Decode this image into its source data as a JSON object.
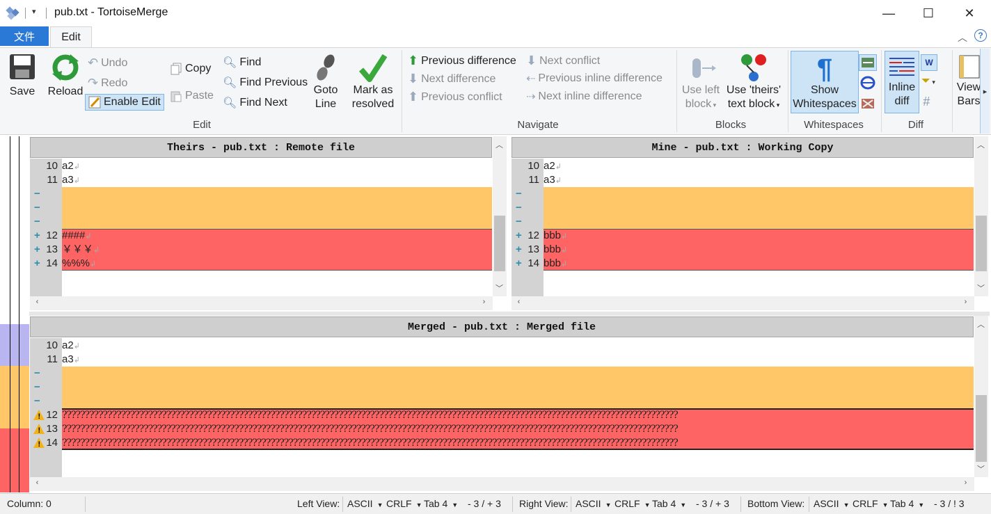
{
  "window": {
    "title": "pub.txt - TortoiseMerge",
    "qat_arrow": "▾",
    "minimize": "—",
    "maximize": "☐",
    "close": "✕"
  },
  "tabs": {
    "file": "文件",
    "edit": "Edit"
  },
  "ribbon": {
    "save": "Save",
    "reload": "Reload",
    "undo": "Undo",
    "redo": "Redo",
    "enable_edit": "Enable Edit",
    "copy": "Copy",
    "paste": "Paste",
    "find": "Find",
    "find_previous": "Find Previous",
    "find_next": "Find Next",
    "goto_line_1": "Goto",
    "goto_line_2": "Line",
    "mark_resolved_1": "Mark as",
    "mark_resolved_2": "resolved",
    "edit_group": "Edit",
    "prev_difference": "Previous difference",
    "next_difference": "Next difference",
    "prev_conflict": "Previous conflict",
    "next_conflict": "Next conflict",
    "prev_inline_difference": "Previous inline difference",
    "next_inline_difference": "Next inline difference",
    "navigate_group": "Navigate",
    "use_left_block_1": "Use left",
    "use_left_block_2": "block",
    "use_theirs_1": "Use 'theirs'",
    "use_theirs_2": "text block",
    "blocks_group": "Blocks",
    "show_ws_1": "Show",
    "show_ws_2": "Whitespaces",
    "whitespaces_group": "Whitespaces",
    "inline_diff_1": "Inline",
    "inline_diff_2": "diff",
    "diff_group": "Diff",
    "view_bars_1": "View",
    "view_bars_2": "Bars"
  },
  "theirs": {
    "header": "Theirs - pub.txt : Remote file",
    "lines": [
      {
        "num": "10",
        "text": "a2"
      },
      {
        "num": "11",
        "text": "a3"
      },
      {
        "num": "12",
        "text": "####"
      },
      {
        "num": "13",
        "text": "￥￥￥"
      },
      {
        "num": "14",
        "text": "%%%"
      }
    ],
    "minus": "−",
    "plus": "+"
  },
  "mine": {
    "header": "Mine - pub.txt : Working Copy",
    "lines": [
      {
        "num": "10",
        "text": "a2"
      },
      {
        "num": "11",
        "text": "a3"
      },
      {
        "num": "12",
        "text": "bbb"
      },
      {
        "num": "13",
        "text": "bbb"
      },
      {
        "num": "14",
        "text": "bbb"
      }
    ]
  },
  "merged": {
    "header": "Merged - pub.txt : Merged file",
    "lines": [
      {
        "num": "10",
        "text": "a2"
      },
      {
        "num": "11",
        "text": "a3"
      },
      {
        "num": "12",
        "text": "????????????????????????????????????????????????????????????????????????????????????????????????????????????????????????????????????????"
      },
      {
        "num": "13",
        "text": "????????????????????????????????????????????????????????????????????????????????????????????????????????????????????????????????????????"
      },
      {
        "num": "14",
        "text": "????????????????????????????????????????????????????????????????????????????????????????????????????????????????????????????????????????"
      }
    ]
  },
  "status": {
    "column": "Column: 0",
    "left_label": "Left View:",
    "left_enc": "ASCII",
    "left_eol": "CRLF",
    "left_tab": "Tab 4",
    "left_diff": "- 3 / + 3",
    "right_label": "Right View:",
    "right_enc": "ASCII",
    "right_eol": "CRLF",
    "right_tab": "Tab 4",
    "right_diff": "- 3 / + 3",
    "bottom_label": "Bottom View:",
    "bottom_enc": "ASCII",
    "bottom_eol": "CRLF",
    "bottom_tab": "Tab 4",
    "bottom_diff": "- 3 / ! 3"
  },
  "colors": {
    "removed": "#ffc767",
    "conflict": "#ff6464",
    "accent": "#2b79d6",
    "gutter": "#d3d3d3"
  }
}
